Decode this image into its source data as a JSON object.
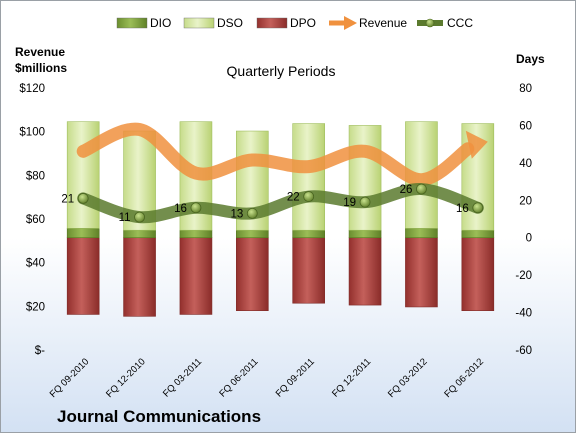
{
  "chart_data": {
    "type": "bar",
    "subtitle": "Quarterly Periods",
    "company": "Journal Communications",
    "left_axis": {
      "title_line1": "Revenue",
      "title_line2": "$millions",
      "range": [
        0,
        120
      ],
      "ticks": [
        "$120",
        "$100",
        "$80",
        "$60",
        "$40",
        "$20",
        "$-"
      ]
    },
    "right_axis": {
      "title": "Days",
      "range": [
        -60,
        80
      ],
      "ticks": [
        "80",
        "60",
        "40",
        "20",
        "0",
        "-20",
        "-40",
        "-60"
      ]
    },
    "categories": [
      "FQ 09-2010",
      "FQ 12-2010",
      "FQ 03-2011",
      "FQ 06-2011",
      "FQ 09-2011",
      "FQ 12-2011",
      "FQ 03-2012",
      "FQ 06-2012"
    ],
    "series": [
      {
        "name": "DIO",
        "axis": "right",
        "values": [
          5,
          4,
          4,
          4,
          4,
          4,
          5,
          4
        ]
      },
      {
        "name": "DSO",
        "axis": "right",
        "values": [
          57,
          53,
          58,
          53,
          57,
          56,
          57,
          57
        ]
      },
      {
        "name": "DPO",
        "axis": "right",
        "values": [
          -41,
          -42,
          -41,
          -39,
          -35,
          -36,
          -37,
          -39
        ]
      },
      {
        "name": "Revenue",
        "axis": "left",
        "values": [
          91,
          101,
          81,
          87,
          84,
          91,
          78,
          94
        ]
      },
      {
        "name": "CCC",
        "axis": "right",
        "values": [
          21,
          11,
          16,
          13,
          22,
          19,
          26,
          16
        ]
      }
    ],
    "ccc_labels": [
      "21",
      "11",
      "16",
      "13",
      "22",
      "19",
      "26",
      "16"
    ],
    "colors": {
      "DIO": "#7ea03c",
      "DSO": "#d6e8a8",
      "DPO": "#b14743",
      "Revenue": "#f0913e",
      "CCC": "#5b7a2e"
    },
    "legend_position": "top"
  }
}
